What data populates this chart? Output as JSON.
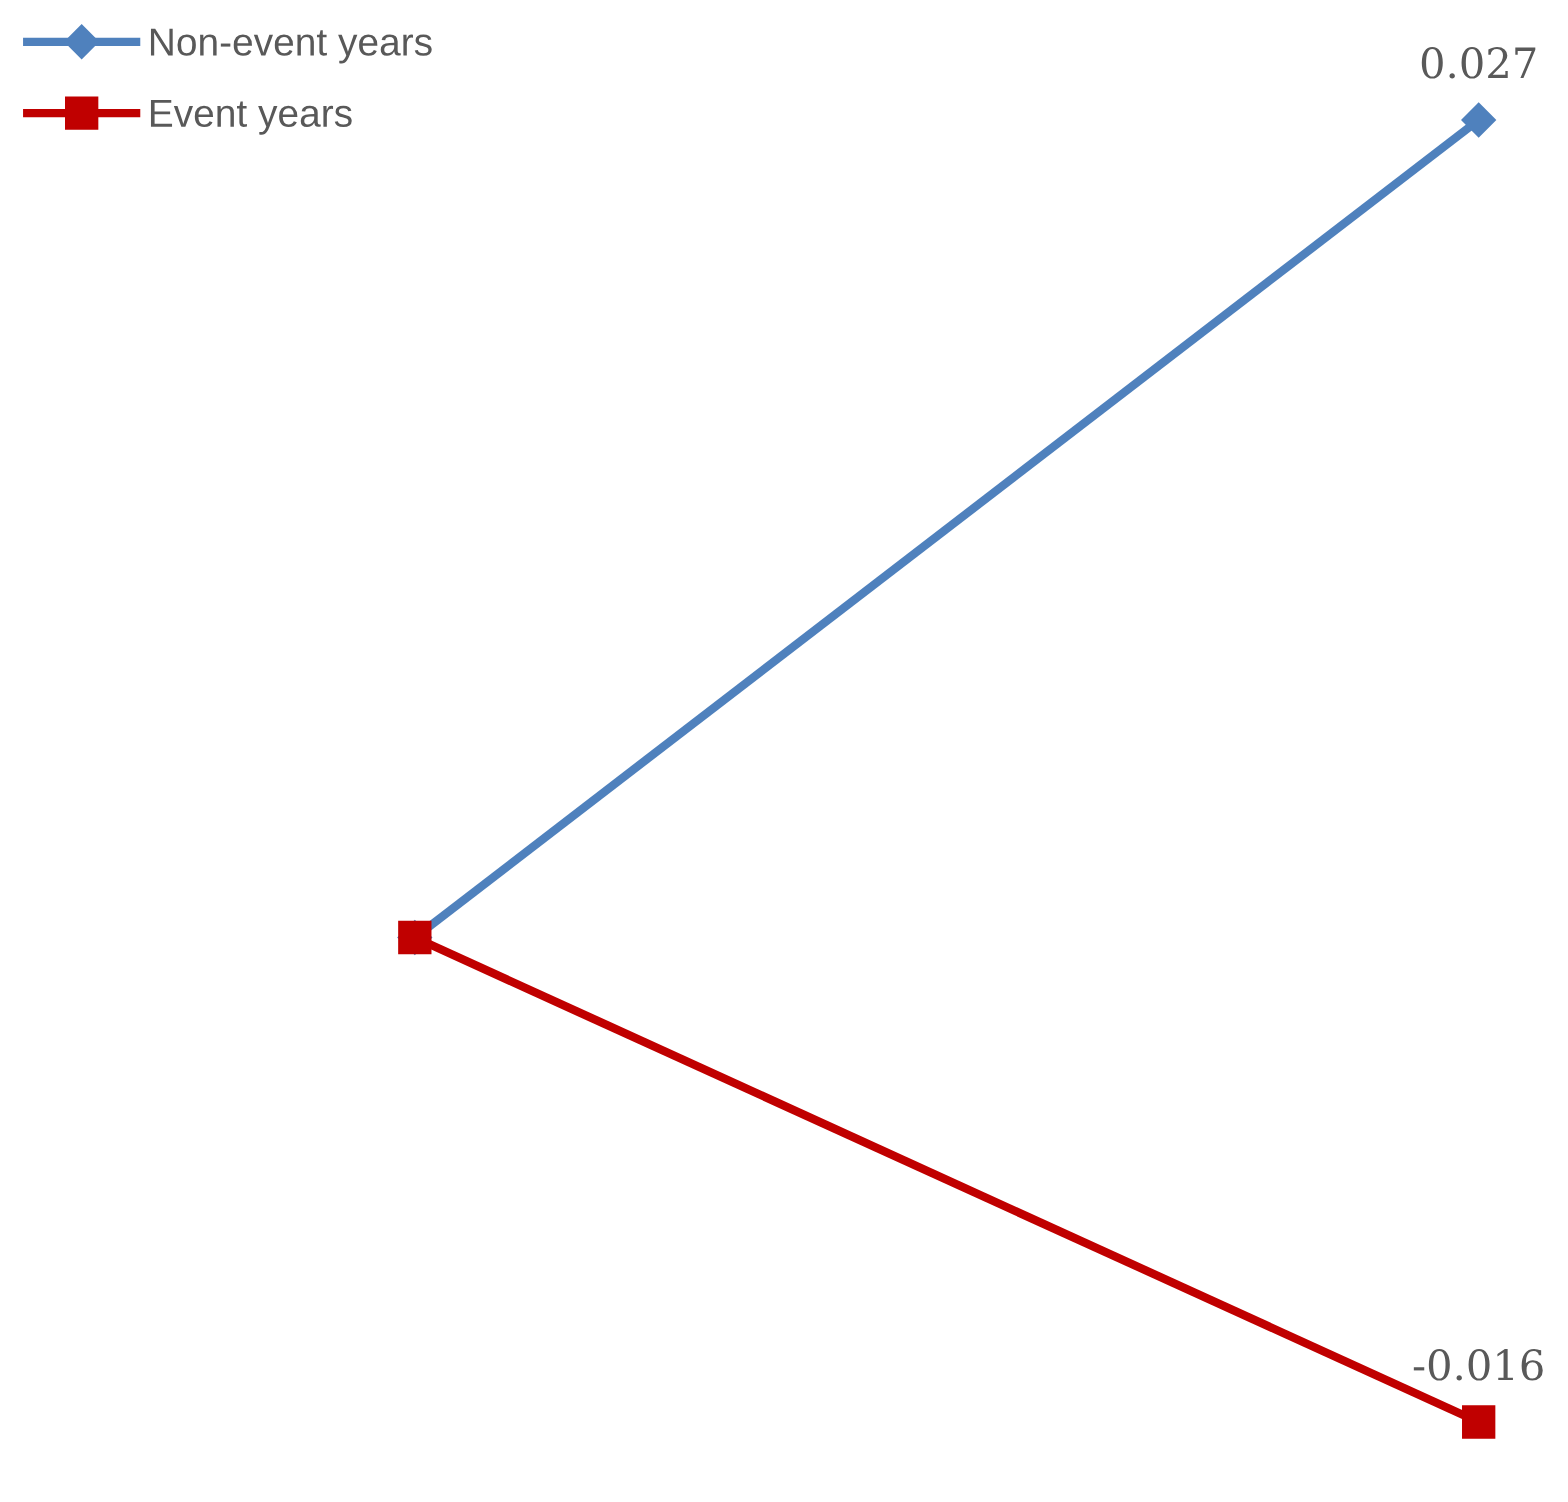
{
  "chart_data": {
    "type": "line",
    "categories": [
      null,
      null
    ],
    "legend": "top left",
    "series": [
      {
        "name": "Non-event years",
        "color": "#4f81bd",
        "values": [
          0,
          0.027
        ],
        "marker": "diamond",
        "value_labels": [
          null,
          "0.027"
        ]
      },
      {
        "name": "Event years",
        "color": "#c00000",
        "values": [
          0,
          -0.016
        ],
        "marker": "square",
        "value_labels": [
          null,
          "-0.016"
        ]
      }
    ]
  }
}
